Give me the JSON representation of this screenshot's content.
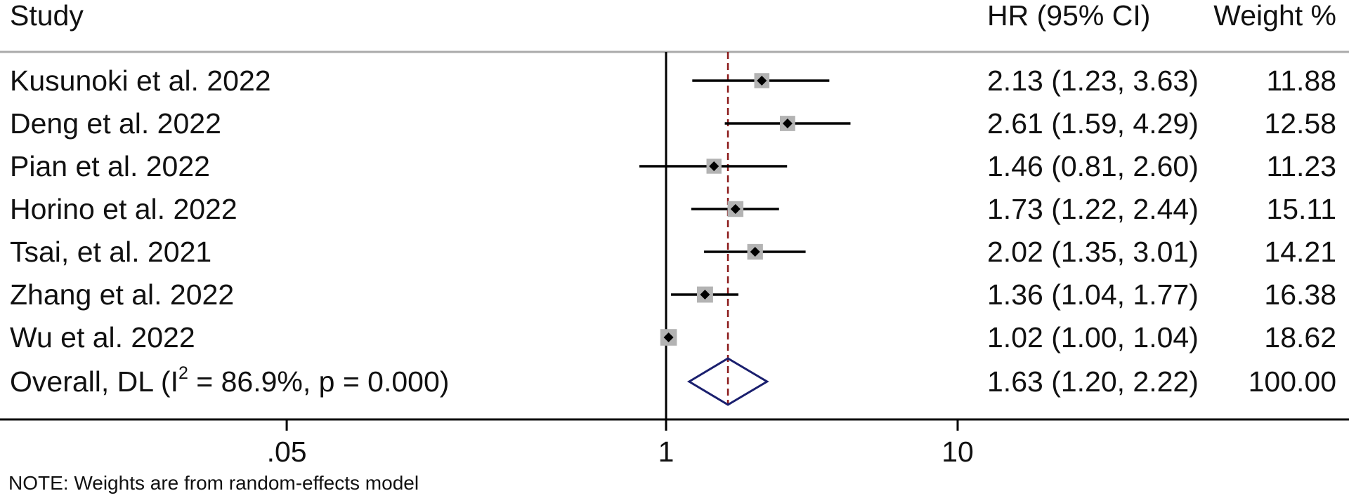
{
  "chart_data": {
    "type": "forest",
    "x_scale": "log",
    "headers": {
      "study": "Study",
      "effect": "HR (95% CI)",
      "weight": "Weight %"
    },
    "studies": [
      {
        "label": "Kusunoki et al. 2022",
        "hr": 2.13,
        "lo": 1.23,
        "hi": 3.63,
        "ci_text": "2.13 (1.23, 3.63)",
        "weight": 11.88,
        "weight_text": "11.88"
      },
      {
        "label": "Deng et al. 2022",
        "hr": 2.61,
        "lo": 1.59,
        "hi": 4.29,
        "ci_text": "2.61 (1.59, 4.29)",
        "weight": 12.58,
        "weight_text": "12.58"
      },
      {
        "label": "Pian et al. 2022",
        "hr": 1.46,
        "lo": 0.81,
        "hi": 2.6,
        "ci_text": "1.46 (0.81, 2.60)",
        "weight": 11.23,
        "weight_text": "11.23"
      },
      {
        "label": "Horino et al. 2022",
        "hr": 1.73,
        "lo": 1.22,
        "hi": 2.44,
        "ci_text": "1.73 (1.22, 2.44)",
        "weight": 15.11,
        "weight_text": "15.11"
      },
      {
        "label": "Tsai, et al. 2021",
        "hr": 2.02,
        "lo": 1.35,
        "hi": 3.01,
        "ci_text": "2.02 (1.35, 3.01)",
        "weight": 14.21,
        "weight_text": "14.21"
      },
      {
        "label": "Zhang et al. 2022",
        "hr": 1.36,
        "lo": 1.04,
        "hi": 1.77,
        "ci_text": "1.36 (1.04, 1.77)",
        "weight": 16.38,
        "weight_text": "16.38"
      },
      {
        "label": "Wu et al. 2022",
        "hr": 1.02,
        "lo": 1.0,
        "hi": 1.04,
        "ci_text": "1.02 (1.00, 1.04)",
        "weight": 18.62,
        "weight_text": "18.62"
      }
    ],
    "overall": {
      "label_prefix": "Overall, DL (I",
      "label_sup": "2",
      "label_suffix": " = 86.9%, p = 0.000)",
      "hr": 1.63,
      "lo": 1.2,
      "hi": 2.22,
      "ci_text": "1.63 (1.20, 2.22)",
      "weight": 100.0,
      "weight_text": "100.00"
    },
    "x_ticks": [
      {
        "value": 0.05,
        "label": ".05"
      },
      {
        "value": 1,
        "label": "1"
      },
      {
        "value": 10,
        "label": "10"
      }
    ],
    "null_line": 1,
    "note": "NOTE: Weights are from random-effects model",
    "colors": {
      "ci_line": "#000000",
      "point": "#000000",
      "weight_box": "#b3b3b3",
      "overall_diamond": "#1a1f6e",
      "overall_line": "#8b1a1a",
      "header_rule": "#aaaaaa"
    }
  }
}
